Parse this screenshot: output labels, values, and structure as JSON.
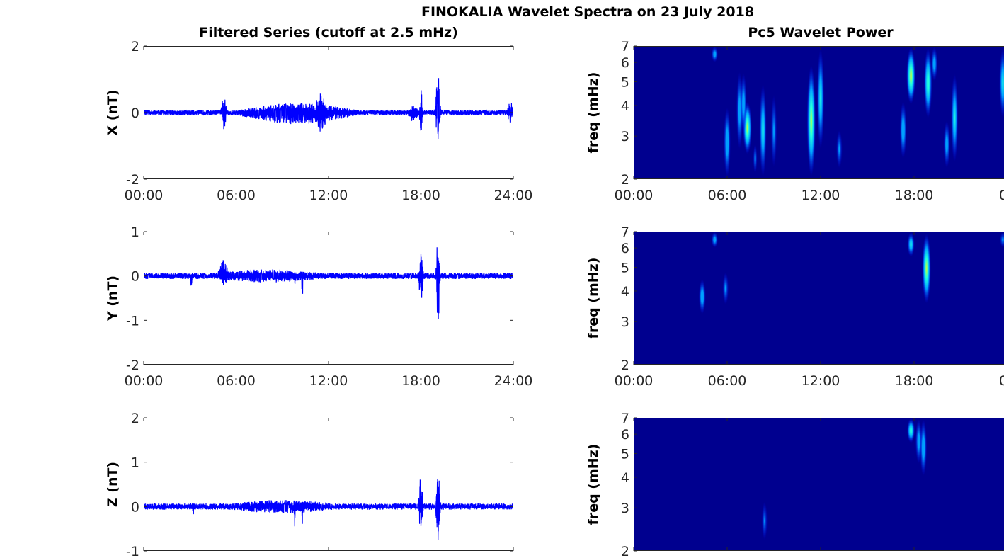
{
  "title": "FINOKALIA Wavelet Spectra on 23 July 2018",
  "colors": {
    "line": "#0000ff",
    "spec_bg": "#00008f",
    "axis": "#262626"
  },
  "chart_data": [
    {
      "type": "line",
      "panel": "left",
      "row": 0,
      "title": "Filtered Series (cutoff at 2.5 mHz)",
      "ylabel": "X (nT)",
      "ylim": [
        -2,
        2
      ],
      "yticks": [
        "-2",
        "0",
        "2"
      ],
      "xlim_hours": [
        0,
        24
      ],
      "xticks": [
        "00:00",
        "06:00",
        "12:00",
        "18:00",
        "24:00"
      ],
      "baseline_amp": 0.08,
      "events": [
        {
          "t": 5.2,
          "up": 0.55,
          "down": -0.62,
          "w": 0.15
        },
        {
          "t": 11.5,
          "up": 0.6,
          "down": -0.62,
          "w": 0.4
        },
        {
          "t": 18.0,
          "up": 1.0,
          "down": -0.78,
          "w": 0.08
        },
        {
          "t": 19.1,
          "up": 1.45,
          "down": -1.15,
          "w": 0.12
        },
        {
          "t": 10.0,
          "up": 0.3,
          "down": -0.35,
          "w": 3.5
        },
        {
          "t": 17.5,
          "up": 0.25,
          "down": -0.3,
          "w": 0.3
        },
        {
          "t": 23.8,
          "up": 0.35,
          "down": -0.3,
          "w": 0.2
        }
      ]
    },
    {
      "type": "line",
      "panel": "left",
      "row": 1,
      "ylabel": "Y (nT)",
      "ylim": [
        -2,
        1
      ],
      "yticks": [
        "-2",
        "-1",
        "0",
        "1"
      ],
      "xlim_hours": [
        0,
        24
      ],
      "xticks": [
        "00:00",
        "06:00",
        "12:00",
        "18:00",
        "24:00"
      ],
      "baseline_amp": 0.07,
      "events": [
        {
          "t": 5.2,
          "up": 0.4,
          "down": -0.2,
          "w": 0.3
        },
        {
          "t": 3.1,
          "up": 0.1,
          "down": -0.35,
          "w": 0.05
        },
        {
          "t": 10.3,
          "up": 0.1,
          "down": -0.52,
          "w": 0.05
        },
        {
          "t": 9.8,
          "up": 0.1,
          "down": -0.3,
          "w": 0.05
        },
        {
          "t": 18.0,
          "up": 0.55,
          "down": -0.75,
          "w": 0.12
        },
        {
          "t": 19.1,
          "up": 0.88,
          "down": -1.3,
          "w": 0.1
        },
        {
          "t": 8.0,
          "up": 0.15,
          "down": -0.15,
          "w": 4
        }
      ]
    },
    {
      "type": "line",
      "panel": "left",
      "row": 2,
      "ylabel": "Z (nT)",
      "ylim": [
        -1,
        2
      ],
      "yticks": [
        "-1",
        "0",
        "1",
        "2"
      ],
      "xlim_hours": [
        0,
        24
      ],
      "xticks": [],
      "baseline_amp": 0.07,
      "events": [
        {
          "t": 3.2,
          "up": 0.1,
          "down": -0.45,
          "w": 0.05
        },
        {
          "t": 9.8,
          "up": 0.1,
          "down": -0.5,
          "w": 0.05
        },
        {
          "t": 10.3,
          "up": 0.1,
          "down": -0.7,
          "w": 0.05
        },
        {
          "t": 18.0,
          "up": 0.75,
          "down": -0.7,
          "w": 0.12
        },
        {
          "t": 19.1,
          "up": 1.02,
          "down": -0.88,
          "w": 0.12
        },
        {
          "t": 9.0,
          "up": 0.15,
          "down": -0.15,
          "w": 4
        }
      ]
    },
    {
      "type": "heatmap",
      "panel": "right",
      "row": 0,
      "title": "Pc5 Wavelet Power",
      "ylabel": "freq (mHz)",
      "yscale": "log",
      "ylim": [
        2,
        7
      ],
      "yticks": [
        "2",
        "3",
        "4",
        "5",
        "6",
        "7"
      ],
      "xlim_hours": [
        0,
        24
      ],
      "xticks": [
        "00:00",
        "06:00",
        "12:00",
        "18:00",
        "00"
      ],
      "blobs": [
        [
          5.2,
          6.0,
          7,
          0.5
        ],
        [
          6.0,
          2.0,
          4.0,
          0.55
        ],
        [
          7.3,
          2.5,
          4.2,
          0.85
        ],
        [
          6.8,
          2.6,
          5.6,
          0.5
        ],
        [
          7.05,
          3,
          5.5,
          0.5
        ],
        [
          8.3,
          2.0,
          5,
          0.6
        ],
        [
          9.0,
          2.2,
          4.5,
          0.4
        ],
        [
          7.8,
          2.1,
          2.8,
          0.4
        ],
        [
          11.4,
          2.0,
          6,
          0.85
        ],
        [
          12.0,
          2.6,
          7,
          0.6
        ],
        [
          12.6,
          2,
          2.3,
          0.3
        ],
        [
          13.2,
          2.2,
          3.2,
          0.4
        ],
        [
          17.3,
          2.4,
          4.2,
          0.55
        ],
        [
          17.8,
          4,
          7,
          0.9
        ],
        [
          18.9,
          3.5,
          7,
          0.75
        ],
        [
          19.3,
          5,
          7,
          0.5
        ],
        [
          20.1,
          2.2,
          3.5,
          0.5
        ],
        [
          20.6,
          2.3,
          5.5,
          0.6
        ],
        [
          23.3,
          2.2,
          2.5,
          0.3
        ],
        [
          23.7,
          3.5,
          7,
          0.6
        ]
      ]
    },
    {
      "type": "heatmap",
      "panel": "right",
      "row": 1,
      "ylabel": "freq (mHz)",
      "yscale": "log",
      "ylim": [
        2,
        7
      ],
      "yticks": [
        "2",
        "3",
        "4",
        "5",
        "6",
        "7"
      ],
      "xlim_hours": [
        0,
        24
      ],
      "xticks": [
        "00:00",
        "06:00",
        "12:00",
        "18:00",
        "00"
      ],
      "blobs": [
        [
          4.4,
          3.2,
          4.5,
          0.55
        ],
        [
          5.2,
          6,
          7,
          0.5
        ],
        [
          5.9,
          3.5,
          4.8,
          0.4
        ],
        [
          6.3,
          2.3,
          2.7,
          0.2
        ],
        [
          3.7,
          2.4,
          2.8,
          0.2
        ],
        [
          17.8,
          5.5,
          7,
          0.6
        ],
        [
          18.8,
          3.5,
          7,
          0.85
        ],
        [
          19.3,
          4.5,
          5.3,
          0.3
        ],
        [
          23.7,
          6,
          7,
          0.4
        ]
      ]
    },
    {
      "type": "heatmap",
      "panel": "right",
      "row": 2,
      "ylabel": "freq (mHz)",
      "yscale": "log",
      "ylim": [
        2,
        7
      ],
      "yticks": [
        "2",
        "3",
        "4",
        "5",
        "6",
        "7"
      ],
      "xlim_hours": [
        0,
        24
      ],
      "xticks": [],
      "blobs": [
        [
          4.4,
          3.2,
          3.8,
          0.3
        ],
        [
          7.5,
          2.9,
          3.4,
          0.3
        ],
        [
          8.4,
          2.2,
          3.2,
          0.35
        ],
        [
          11.2,
          4.3,
          4.6,
          0.15
        ],
        [
          17.8,
          5.5,
          7,
          0.7
        ],
        [
          18.3,
          4.5,
          7,
          0.5
        ],
        [
          18.6,
          4,
          7,
          0.55
        ],
        [
          19.5,
          4.8,
          5.5,
          0.25
        ]
      ]
    }
  ]
}
